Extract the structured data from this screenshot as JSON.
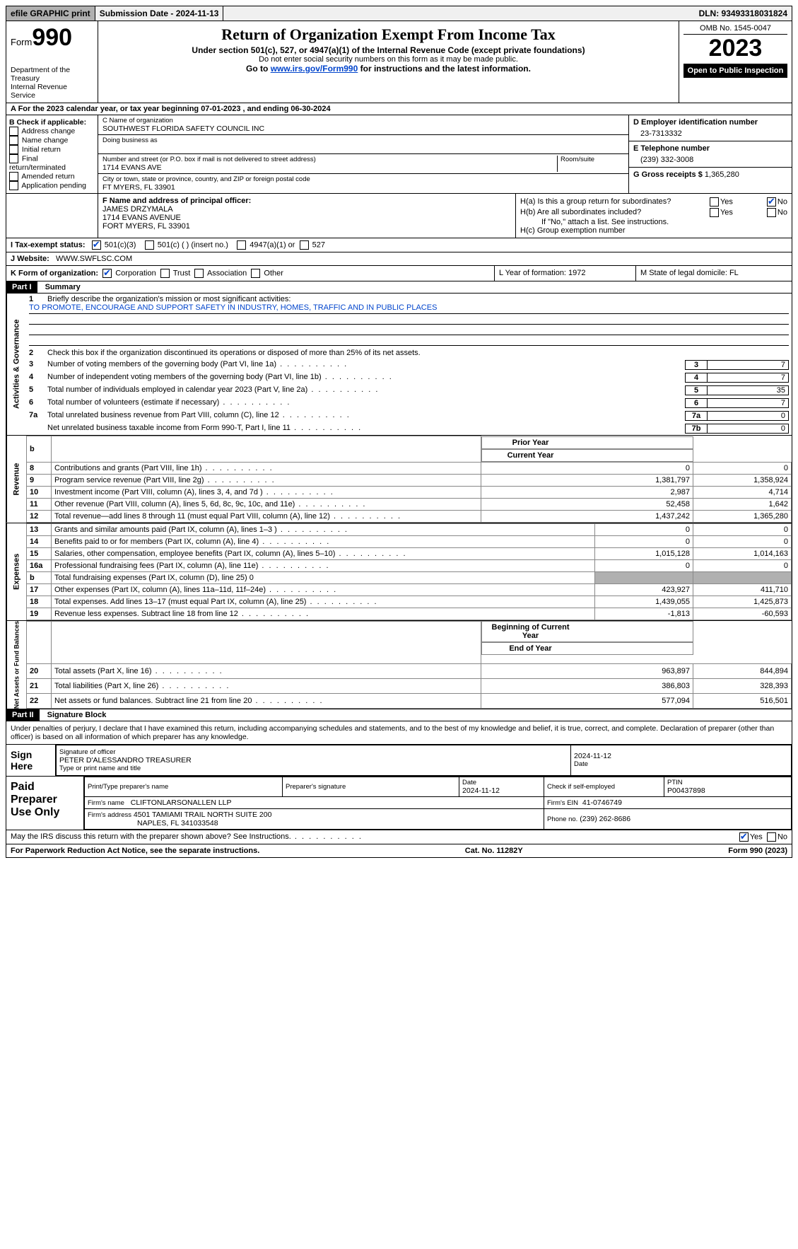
{
  "topbar": {
    "efile": "efile GRAPHIC print",
    "submission": "Submission Date - 2024-11-13",
    "dln": "DLN: 93493318031824"
  },
  "header": {
    "form_label": "Form",
    "form_num": "990",
    "dept": "Department of the Treasury",
    "irs": "Internal Revenue Service",
    "title": "Return of Organization Exempt From Income Tax",
    "sub1": "Under section 501(c), 527, or 4947(a)(1) of the Internal Revenue Code (except private foundations)",
    "sub2": "Do not enter social security numbers on this form as it may be made public.",
    "sub3_pre": "Go to ",
    "sub3_link": "www.irs.gov/Form990",
    "sub3_post": " for instructions and the latest information.",
    "omb": "OMB No. 1545-0047",
    "year": "2023",
    "open": "Open to Public Inspection"
  },
  "rowA": "A  For the 2023 calendar year, or tax year beginning 07-01-2023    , and ending 06-30-2024",
  "B": {
    "label": "B Check if applicable:",
    "items": [
      "Address change",
      "Name change",
      "Initial return",
      "Final return/terminated",
      "Amended return",
      "Application pending"
    ]
  },
  "C": {
    "name_lbl": "C Name of organization",
    "name": "SOUTHWEST FLORIDA SAFETY COUNCIL INC",
    "dba_lbl": "Doing business as",
    "addr_lbl": "Number and street (or P.O. box if mail is not delivered to street address)",
    "room_lbl": "Room/suite",
    "addr": "1714 EVANS AVE",
    "city_lbl": "City or town, state or province, country, and ZIP or foreign postal code",
    "city": "FT MYERS, FL  33901"
  },
  "D": {
    "lbl": "D Employer identification number",
    "val": "23-7313332"
  },
  "E": {
    "lbl": "E Telephone number",
    "val": "(239) 332-3008"
  },
  "G": {
    "lbl": "G Gross receipts $",
    "val": "1,365,280"
  },
  "F": {
    "lbl": "F  Name and address of principal officer:",
    "name": "JAMES DRZYMALA",
    "addr1": "1714 EVANS AVENUE",
    "addr2": "FORT MYERS, FL  33901"
  },
  "H": {
    "a": "H(a)  Is this a group return for subordinates?",
    "b": "H(b)  Are all subordinates included?",
    "b2": "If \"No,\" attach a list. See instructions.",
    "c": "H(c)  Group exemption number",
    "yes": "Yes",
    "no": "No"
  },
  "I": {
    "lbl": "I    Tax-exempt status:",
    "o1": "501(c)(3)",
    "o2": "501(c) (  ) (insert no.)",
    "o3": "4947(a)(1) or",
    "o4": "527"
  },
  "J": {
    "lbl": "J   Website:",
    "val": "WWW.SWFLSC.COM"
  },
  "K": {
    "lbl": "K Form of organization:",
    "o1": "Corporation",
    "o2": "Trust",
    "o3": "Association",
    "o4": "Other",
    "L": "L Year of formation: 1972",
    "M": "M State of legal domicile: FL"
  },
  "part1": {
    "label": "Part I",
    "title": "Summary"
  },
  "summary": {
    "l1": "Briefly describe the organization's mission or most significant activities:",
    "mission": "TO PROMOTE, ENCOURAGE AND SUPPORT SAFETY IN INDUSTRY, HOMES, TRAFFIC AND IN PUBLIC PLACES",
    "l2": "Check this box      if the organization discontinued its operations or disposed of more than 25% of its net assets.",
    "lines": [
      {
        "n": "3",
        "t": "Number of voting members of the governing body (Part VI, line 1a)",
        "box": "3",
        "v": "7"
      },
      {
        "n": "4",
        "t": "Number of independent voting members of the governing body (Part VI, line 1b)",
        "box": "4",
        "v": "7"
      },
      {
        "n": "5",
        "t": "Total number of individuals employed in calendar year 2023 (Part V, line 2a)",
        "box": "5",
        "v": "35"
      },
      {
        "n": "6",
        "t": "Total number of volunteers (estimate if necessary)",
        "box": "6",
        "v": "7"
      },
      {
        "n": "7a",
        "t": "Total unrelated business revenue from Part VIII, column (C), line 12",
        "box": "7a",
        "v": "0"
      },
      {
        "n": "",
        "t": "Net unrelated business taxable income from Form 990-T, Part I, line 11",
        "box": "7b",
        "v": "0"
      }
    ]
  },
  "fin": {
    "hdr_prior": "Prior Year",
    "hdr_curr": "Current Year",
    "hdr_beg": "Beginning of Current Year",
    "hdr_end": "End of Year",
    "sections": {
      "revenue": "Revenue",
      "expenses": "Expenses",
      "net": "Net Assets or Fund Balances",
      "b_row": "b"
    },
    "rows": [
      {
        "n": "8",
        "t": "Contributions and grants (Part VIII, line 1h)",
        "p": "0",
        "c": "0"
      },
      {
        "n": "9",
        "t": "Program service revenue (Part VIII, line 2g)",
        "p": "1,381,797",
        "c": "1,358,924"
      },
      {
        "n": "10",
        "t": "Investment income (Part VIII, column (A), lines 3, 4, and 7d )",
        "p": "2,987",
        "c": "4,714"
      },
      {
        "n": "11",
        "t": "Other revenue (Part VIII, column (A), lines 5, 6d, 8c, 9c, 10c, and 11e)",
        "p": "52,458",
        "c": "1,642"
      },
      {
        "n": "12",
        "t": "Total revenue—add lines 8 through 11 (must equal Part VIII, column (A), line 12)",
        "p": "1,437,242",
        "c": "1,365,280"
      }
    ],
    "exp": [
      {
        "n": "13",
        "t": "Grants and similar amounts paid (Part IX, column (A), lines 1–3 )",
        "p": "0",
        "c": "0"
      },
      {
        "n": "14",
        "t": "Benefits paid to or for members (Part IX, column (A), line 4)",
        "p": "0",
        "c": "0"
      },
      {
        "n": "15",
        "t": "Salaries, other compensation, employee benefits (Part IX, column (A), lines 5–10)",
        "p": "1,015,128",
        "c": "1,014,163"
      },
      {
        "n": "16a",
        "t": "Professional fundraising fees (Part IX, column (A), line 11e)",
        "p": "0",
        "c": "0"
      }
    ],
    "exp_b": "Total fundraising expenses (Part IX, column (D), line 25) 0",
    "exp2": [
      {
        "n": "17",
        "t": "Other expenses (Part IX, column (A), lines 11a–11d, 11f–24e)",
        "p": "423,927",
        "c": "411,710"
      },
      {
        "n": "18",
        "t": "Total expenses. Add lines 13–17 (must equal Part IX, column (A), line 25)",
        "p": "1,439,055",
        "c": "1,425,873"
      },
      {
        "n": "19",
        "t": "Revenue less expenses. Subtract line 18 from line 12",
        "p": "-1,813",
        "c": "-60,593"
      }
    ],
    "net": [
      {
        "n": "20",
        "t": "Total assets (Part X, line 16)",
        "p": "963,897",
        "c": "844,894"
      },
      {
        "n": "21",
        "t": "Total liabilities (Part X, line 26)",
        "p": "386,803",
        "c": "328,393"
      },
      {
        "n": "22",
        "t": "Net assets or fund balances. Subtract line 21 from line 20",
        "p": "577,094",
        "c": "516,501"
      }
    ]
  },
  "part2": {
    "label": "Part II",
    "title": "Signature Block"
  },
  "sig_decl": "Under penalties of perjury, I declare that I have examined this return, including accompanying schedules and statements, and to the best of my knowledge and belief, it is true, correct, and complete. Declaration of preparer (other than officer) is based on all information of which preparer has any knowledge.",
  "sign": {
    "here": "Sign Here",
    "sig_lbl": "Signature of officer",
    "officer": "PETER D'ALESSANDRO  TREASURER",
    "type_lbl": "Type or print name and title",
    "date_lbl": "Date",
    "date": "2024-11-12"
  },
  "paid": {
    "label": "Paid Preparer Use Only",
    "print_lbl": "Print/Type preparer's name",
    "sig_lbl": "Preparer's signature",
    "date_lbl": "Date",
    "date": "2024-11-12",
    "check_lbl": "Check       if self-employed",
    "ptin_lbl": "PTIN",
    "ptin": "P00437898",
    "firm_name_lbl": "Firm's name",
    "firm_name": "CLIFTONLARSONALLEN LLP",
    "firm_ein_lbl": "Firm's EIN",
    "firm_ein": "41-0746749",
    "firm_addr_lbl": "Firm's address",
    "firm_addr1": "4501 TAMIAMI TRAIL NORTH SUITE 200",
    "firm_addr2": "NAPLES, FL  341033548",
    "phone_lbl": "Phone no.",
    "phone": "(239) 262-8686"
  },
  "discuss": {
    "q": "May the IRS discuss this return with the preparer shown above? See Instructions.",
    "yes": "Yes",
    "no": "No"
  },
  "foot": {
    "l": "For Paperwork Reduction Act Notice, see the separate instructions.",
    "c": "Cat. No. 11282Y",
    "r": "Form 990 (2023)"
  }
}
